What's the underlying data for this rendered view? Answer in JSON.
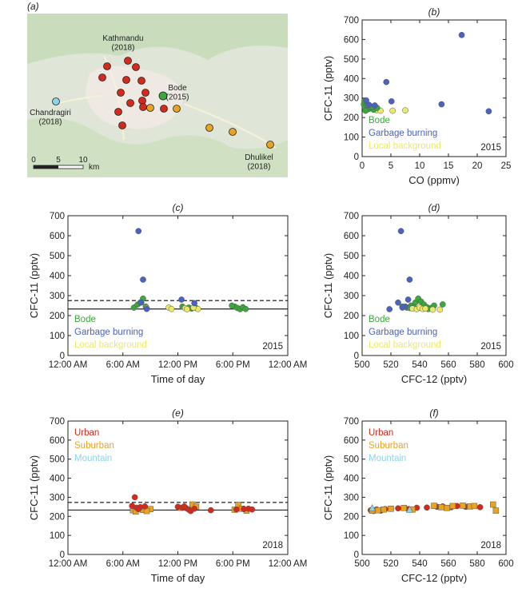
{
  "colors": {
    "bode": "#3aa83a",
    "garbage": "#4a62c0",
    "local": "#ece86a",
    "urban": "#d42a1e",
    "suburban": "#e8a320",
    "mountain": "#8dd3ea"
  },
  "map": {
    "panel_label": "(a)",
    "labels": {
      "kathmandu": "Kathmandu\n(2018)",
      "bode": "Bode\n(2015)",
      "chandragiri": "Chandragiri\n(2018)",
      "dhulikel": "Dhulikel\n(2018)"
    },
    "scalebar": {
      "ticks": [
        "0",
        "5",
        "10"
      ],
      "unit": "km"
    }
  },
  "chart_data": [
    {
      "id": "b",
      "panel_label": "(b)",
      "type": "scatter",
      "xlabel": "CO (ppmv)",
      "ylabel": "CFC-11 (pptv)",
      "xlim": [
        0,
        25
      ],
      "ylim": [
        0,
        700
      ],
      "xticks": [
        "0",
        "5",
        "10",
        "15",
        "20",
        "25"
      ],
      "yticks": [
        "0",
        "100",
        "200",
        "300",
        "400",
        "500",
        "600",
        "700"
      ],
      "year": "2015",
      "legend": [
        {
          "name": "Bode",
          "color": "bode"
        },
        {
          "name": "Garbage burning",
          "color": "garbage"
        },
        {
          "name": "Local background",
          "color": "local"
        }
      ],
      "series": [
        {
          "color": "local",
          "shape": "circle",
          "points": [
            [
              2.5,
              238
            ],
            [
              3.2,
              235
            ],
            [
              5.3,
              235
            ],
            [
              7.5,
              237
            ]
          ]
        },
        {
          "color": "bode",
          "shape": "circle",
          "points": [
            [
              0.3,
              268
            ],
            [
              0.5,
              250
            ],
            [
              0.8,
              240
            ],
            [
              1.0,
              260
            ],
            [
              1.2,
              245
            ],
            [
              1.5,
              253
            ],
            [
              2.0,
              240
            ],
            [
              2.6,
              250
            ],
            [
              0.6,
              235
            ],
            [
              1.8,
              255
            ],
            [
              0.4,
              285
            ]
          ]
        },
        {
          "color": "garbage",
          "shape": "circle",
          "points": [
            [
              17.3,
              623
            ],
            [
              4.2,
              382
            ],
            [
              5.1,
              283
            ],
            [
              13.8,
              268
            ],
            [
              22,
              232
            ],
            [
              1.2,
              265
            ],
            [
              2.2,
              262
            ],
            [
              0.7,
              288
            ]
          ]
        }
      ]
    },
    {
      "id": "c",
      "panel_label": "(c)",
      "type": "scatter",
      "xlabel": "Time of day",
      "ylabel": "CFC-11 (pptv)",
      "xlim": [
        0,
        24
      ],
      "ylim": [
        0,
        700
      ],
      "xticks": [
        "12:00 AM",
        "6:00 AM",
        "12:00 PM",
        "6:00 PM",
        "12:00 AM"
      ],
      "yticks": [
        "0",
        "100",
        "200",
        "300",
        "400",
        "500",
        "600",
        "700"
      ],
      "year": "2015",
      "hline_solid": 233,
      "hline_dashed": 275,
      "legend": [
        {
          "name": "Bode",
          "color": "bode"
        },
        {
          "name": "Garbage burning",
          "color": "garbage"
        },
        {
          "name": "Local background",
          "color": "local"
        }
      ],
      "series": [
        {
          "color": "bode",
          "shape": "circle",
          "points": [
            [
              7.2,
              240
            ],
            [
              7.6,
              255
            ],
            [
              7.9,
              265
            ],
            [
              8.2,
              285
            ],
            [
              8.5,
              245
            ],
            [
              12.5,
              245
            ],
            [
              13.2,
              240
            ],
            [
              14.0,
              238
            ],
            [
              18.2,
              245
            ],
            [
              18.5,
              238
            ],
            [
              18.8,
              232
            ],
            [
              19.1,
              242
            ],
            [
              19.4,
              233
            ],
            [
              17.9,
              250
            ],
            [
              13.5,
              235
            ]
          ]
        },
        {
          "color": "local",
          "shape": "circle",
          "points": [
            [
              8.6,
              237
            ],
            [
              11.0,
              240
            ],
            [
              11.3,
              233
            ],
            [
              12.8,
              237
            ],
            [
              13.0,
              232
            ],
            [
              14.2,
              233
            ],
            [
              13.7,
              240
            ]
          ]
        },
        {
          "color": "garbage",
          "shape": "circle",
          "points": [
            [
              7.7,
              623
            ],
            [
              8.2,
              380
            ],
            [
              8.0,
              265
            ],
            [
              12.4,
              280
            ],
            [
              13.8,
              262
            ],
            [
              8.6,
              233
            ]
          ]
        }
      ]
    },
    {
      "id": "d",
      "panel_label": "(d)",
      "type": "scatter",
      "xlabel": "CFC-12 (pptv)",
      "ylabel": "CFC-11 (pptv)",
      "xlim": [
        500,
        600
      ],
      "ylim": [
        0,
        700
      ],
      "xticks": [
        "500",
        "520",
        "540",
        "560",
        "580",
        "600"
      ],
      "yticks": [
        "0",
        "100",
        "200",
        "300",
        "400",
        "500",
        "600",
        "700"
      ],
      "year": "2015",
      "legend": [
        {
          "name": "Bode",
          "color": "bode"
        },
        {
          "name": "Garbage burning",
          "color": "garbage"
        },
        {
          "name": "Local background",
          "color": "local"
        }
      ],
      "series": [
        {
          "color": "bode",
          "shape": "circle",
          "points": [
            [
              528,
              245
            ],
            [
              531,
              240
            ],
            [
              534,
              250
            ],
            [
              537,
              265
            ],
            [
              539,
              285
            ],
            [
              541,
              270
            ],
            [
              543,
              255
            ],
            [
              545,
              242
            ],
            [
              548,
              238
            ],
            [
              550,
              250
            ],
            [
              556,
              256
            ],
            [
              533,
              238
            ],
            [
              536,
              240
            ],
            [
              546,
              233
            ]
          ]
        },
        {
          "color": "local",
          "shape": "circle",
          "points": [
            [
              535,
              235
            ],
            [
              538,
              232
            ],
            [
              540,
              240
            ],
            [
              542,
              233
            ],
            [
              544,
              235
            ],
            [
              549,
              230
            ],
            [
              554,
              230
            ]
          ]
        },
        {
          "color": "garbage",
          "shape": "circle",
          "points": [
            [
              527,
              623
            ],
            [
              533,
              380
            ],
            [
              532,
              280
            ],
            [
              525,
              265
            ],
            [
              519,
              232
            ],
            [
              530,
              245
            ],
            [
              528,
              240
            ]
          ]
        }
      ]
    },
    {
      "id": "e",
      "panel_label": "(e)",
      "type": "scatter",
      "xlabel": "Time of day",
      "ylabel": "CFC-11 (pptv)",
      "xlim": [
        0,
        24
      ],
      "ylim": [
        0,
        700
      ],
      "xticks": [
        "12:00 AM",
        "6:00 AM",
        "12:00 PM",
        "6:00 PM",
        "12:00 AM"
      ],
      "yticks": [
        "0",
        "100",
        "200",
        "300",
        "400",
        "500",
        "600",
        "700"
      ],
      "year": "2018",
      "hline_solid": 233,
      "hline_dashed": 273,
      "legend": [
        {
          "name": "Urban",
          "color": "urban"
        },
        {
          "name": "Suburban",
          "color": "suburban"
        },
        {
          "name": "Mountain",
          "color": "mountain"
        }
      ],
      "series": [
        {
          "color": "suburban",
          "shape": "square",
          "points": [
            [
              7.1,
              232
            ],
            [
              7.4,
              225
            ],
            [
              7.8,
              240
            ],
            [
              8.2,
              234
            ],
            [
              9.0,
              238
            ],
            [
              12.3,
              245
            ],
            [
              13.6,
              262
            ],
            [
              14.0,
              250
            ],
            [
              18.2,
              235
            ],
            [
              18.6,
              260
            ],
            [
              19.0,
              240
            ],
            [
              19.5,
              230
            ],
            [
              8.6,
              228
            ]
          ]
        },
        {
          "color": "urban",
          "shape": "circle",
          "points": [
            [
              7.3,
              300
            ],
            [
              7.0,
              255
            ],
            [
              7.5,
              245
            ],
            [
              7.9,
              248
            ],
            [
              8.4,
              252
            ],
            [
              12.0,
              250
            ],
            [
              12.5,
              245
            ],
            [
              12.9,
              243
            ],
            [
              13.2,
              235
            ],
            [
              13.4,
              228
            ],
            [
              13.8,
              240
            ],
            [
              15.6,
              232
            ],
            [
              18.4,
              236
            ],
            [
              19.2,
              238
            ],
            [
              19.7,
              240
            ],
            [
              20.1,
              236
            ],
            [
              12.7,
              252
            ],
            [
              7.7,
              238
            ]
          ]
        }
      ]
    },
    {
      "id": "f",
      "panel_label": "(f)",
      "type": "scatter",
      "xlabel": "CFC-12 (pptv)",
      "ylabel": "CFC-11 (pptv)",
      "xlim": [
        500,
        600
      ],
      "ylim": [
        0,
        700
      ],
      "xticks": [
        "500",
        "520",
        "540",
        "560",
        "580",
        "600"
      ],
      "yticks": [
        "0",
        "100",
        "200",
        "300",
        "400",
        "500",
        "600",
        "700"
      ],
      "year": "2018",
      "legend": [
        {
          "name": "Urban",
          "color": "urban"
        },
        {
          "name": "Suburban",
          "color": "suburban"
        },
        {
          "name": "Mountain",
          "color": "mountain"
        }
      ],
      "series": [
        {
          "color": "urban",
          "shape": "circle",
          "points": [
            [
              506,
              232
            ],
            [
              508,
              228
            ],
            [
              510,
              236
            ],
            [
              513,
              230
            ],
            [
              516,
              238
            ],
            [
              520,
              240
            ],
            [
              525,
              242
            ],
            [
              532,
              238
            ],
            [
              538,
              245
            ],
            [
              545,
              246
            ],
            [
              552,
              250
            ],
            [
              556,
              252
            ],
            [
              562,
              248
            ],
            [
              566,
              254
            ],
            [
              572,
              250
            ],
            [
              582,
              248
            ]
          ]
        },
        {
          "color": "suburban",
          "shape": "square",
          "points": [
            [
              507,
              230
            ],
            [
              511,
              232
            ],
            [
              515,
              236
            ],
            [
              520,
              240
            ],
            [
              529,
              244
            ],
            [
              535,
              236
            ],
            [
              550,
              255
            ],
            [
              555,
              248
            ],
            [
              559,
              244
            ],
            [
              563,
              254
            ],
            [
              570,
              256
            ],
            [
              575,
              252
            ],
            [
              578,
              254
            ],
            [
              591,
              262
            ],
            [
              593,
              230
            ]
          ]
        },
        {
          "color": "mountain",
          "shape": "triangle",
          "points": [
            [
              507,
              243
            ],
            [
              533,
              235
            ]
          ]
        }
      ]
    }
  ]
}
